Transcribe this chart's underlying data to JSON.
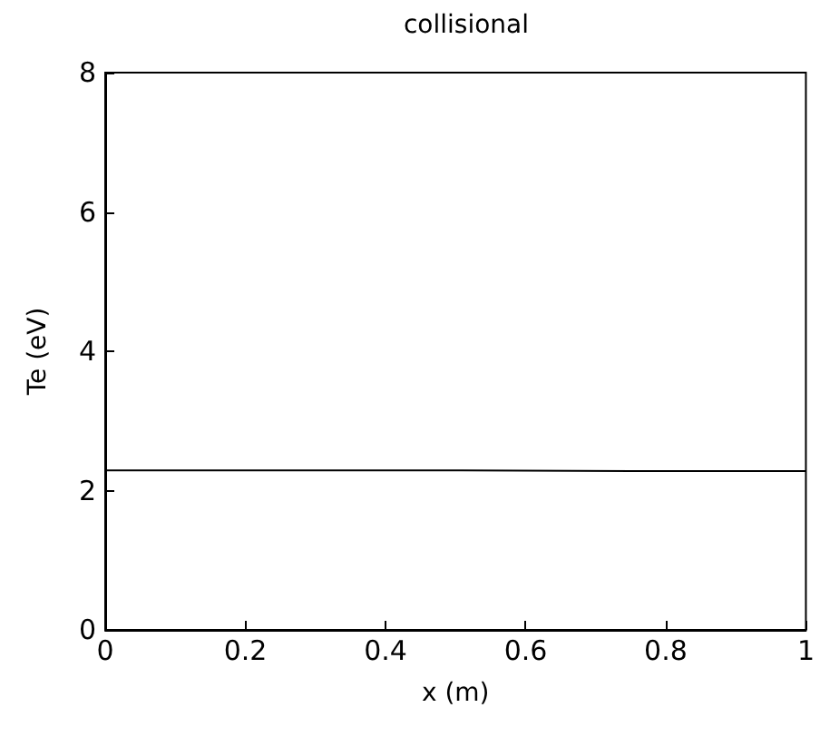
{
  "chart_data": {
    "type": "line",
    "title": "collisional",
    "xlabel": "x (m)",
    "ylabel": "Te (eV)",
    "x": [
      0,
      0.25,
      0.5,
      0.75,
      1
    ],
    "series": [
      {
        "color": "#000000",
        "values": [
          2.29,
          2.29,
          2.29,
          2.28,
          2.28
        ]
      }
    ],
    "xlim": [
      0,
      1
    ],
    "xticks": [
      0,
      0.2,
      0.4,
      0.6,
      0.8,
      1
    ],
    "ylim": [
      0,
      8
    ],
    "yticks": [
      0,
      2,
      4,
      6,
      8
    ],
    "grid": false,
    "marker": "none",
    "line_style": "solid"
  }
}
